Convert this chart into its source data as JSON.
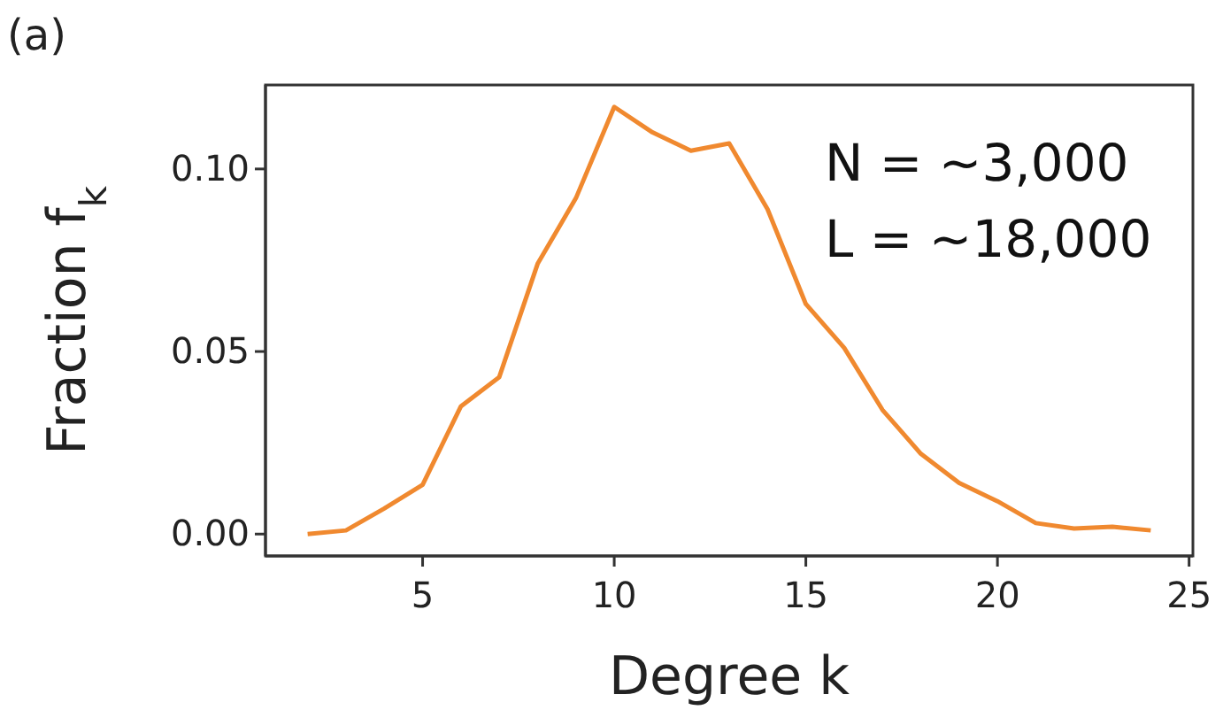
{
  "chart_data": {
    "type": "line",
    "title": "(a)",
    "xlabel": "Degree k",
    "ylabel": "Fraction f$_{k}$",
    "x": [
      2,
      3,
      4,
      5,
      6,
      7,
      8,
      9,
      10,
      11,
      12,
      13,
      14,
      15,
      16,
      17,
      18,
      19,
      20,
      21,
      22,
      23,
      24
    ],
    "series": [
      {
        "color": "#f0892f",
        "values": [
          0.0,
          0.001,
          0.007,
          0.0135,
          0.035,
          0.043,
          0.074,
          0.092,
          0.117,
          0.11,
          0.105,
          0.107,
          0.089,
          0.063,
          0.051,
          0.034,
          0.022,
          0.014,
          0.009,
          0.003,
          0.0015,
          0.002,
          0.001
        ]
      }
    ],
    "xlim": [
      0.9,
      25.1
    ],
    "ylim": [
      -0.006,
      0.123
    ],
    "xticks": [
      5,
      10,
      15,
      20,
      25
    ],
    "yticks": [
      {
        "value": 0,
        "label": "0.00"
      },
      {
        "value": 0.05,
        "label": "0.05"
      },
      {
        "value": 0.1,
        "label": "0.10"
      }
    ],
    "annotations": [
      "N = ~3,000",
      "L = ~18,000"
    ],
    "grid": false,
    "marker": "none",
    "line_style": "solid"
  }
}
